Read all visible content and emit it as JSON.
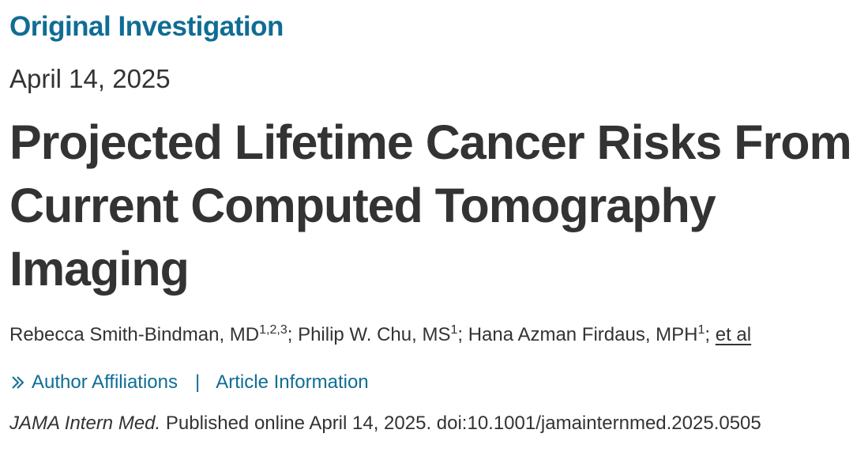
{
  "article": {
    "type_label": "Original Investigation",
    "date": "April 14, 2025",
    "title_lines": [
      "Projected Lifetime Cancer Risks From",
      "Current Computed Tomography",
      "Imaging"
    ],
    "authors": [
      {
        "name": "Rebecca Smith-Bindman, MD",
        "affiliations": "1,2,3"
      },
      {
        "name": "Philip W. Chu, MS",
        "affiliations": "1"
      },
      {
        "name": "Hana Azman Firdaus, MPH",
        "affiliations": "1"
      }
    ],
    "author_separator": ";",
    "et_al": "et al",
    "links": {
      "author_affiliations": "Author Affiliations",
      "separator": "|",
      "article_information": "Article Information"
    },
    "citation": {
      "journal": "JAMA Intern Med.",
      "published": "Published online April 14, 2025. doi:10.1001/jamainternmed.2025.0505"
    }
  },
  "colors": {
    "accent": "#0f6d94",
    "text": "#333333",
    "background": "#ffffff"
  },
  "icons": {
    "expand": "double-chevron-right-icon"
  }
}
